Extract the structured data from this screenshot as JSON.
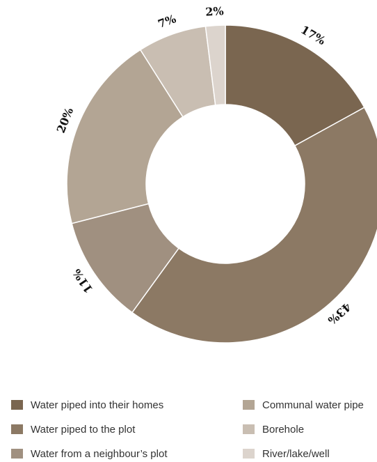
{
  "chart_data": {
    "type": "pie",
    "title": "",
    "slices": [
      {
        "label": "Water piped into their homes",
        "value": 17,
        "value_label": "17%",
        "color": "#7a6650"
      },
      {
        "label": "Water piped to the plot",
        "value": 43,
        "value_label": "43%",
        "color": "#8c7964"
      },
      {
        "label": "Water from a neighbour’s plot",
        "value": 11,
        "value_label": "11%",
        "color": "#a09080"
      },
      {
        "label": "Communal water pipe",
        "value": 20,
        "value_label": "20%",
        "color": "#b3a594"
      },
      {
        "label": "Borehole",
        "value": 7,
        "value_label": "7%",
        "color": "#c9beb2"
      },
      {
        "label": "River/lake/well",
        "value": 2,
        "value_label": "2%",
        "color": "#dcd4cd"
      }
    ],
    "legend_position": "bottom",
    "donut": true
  }
}
